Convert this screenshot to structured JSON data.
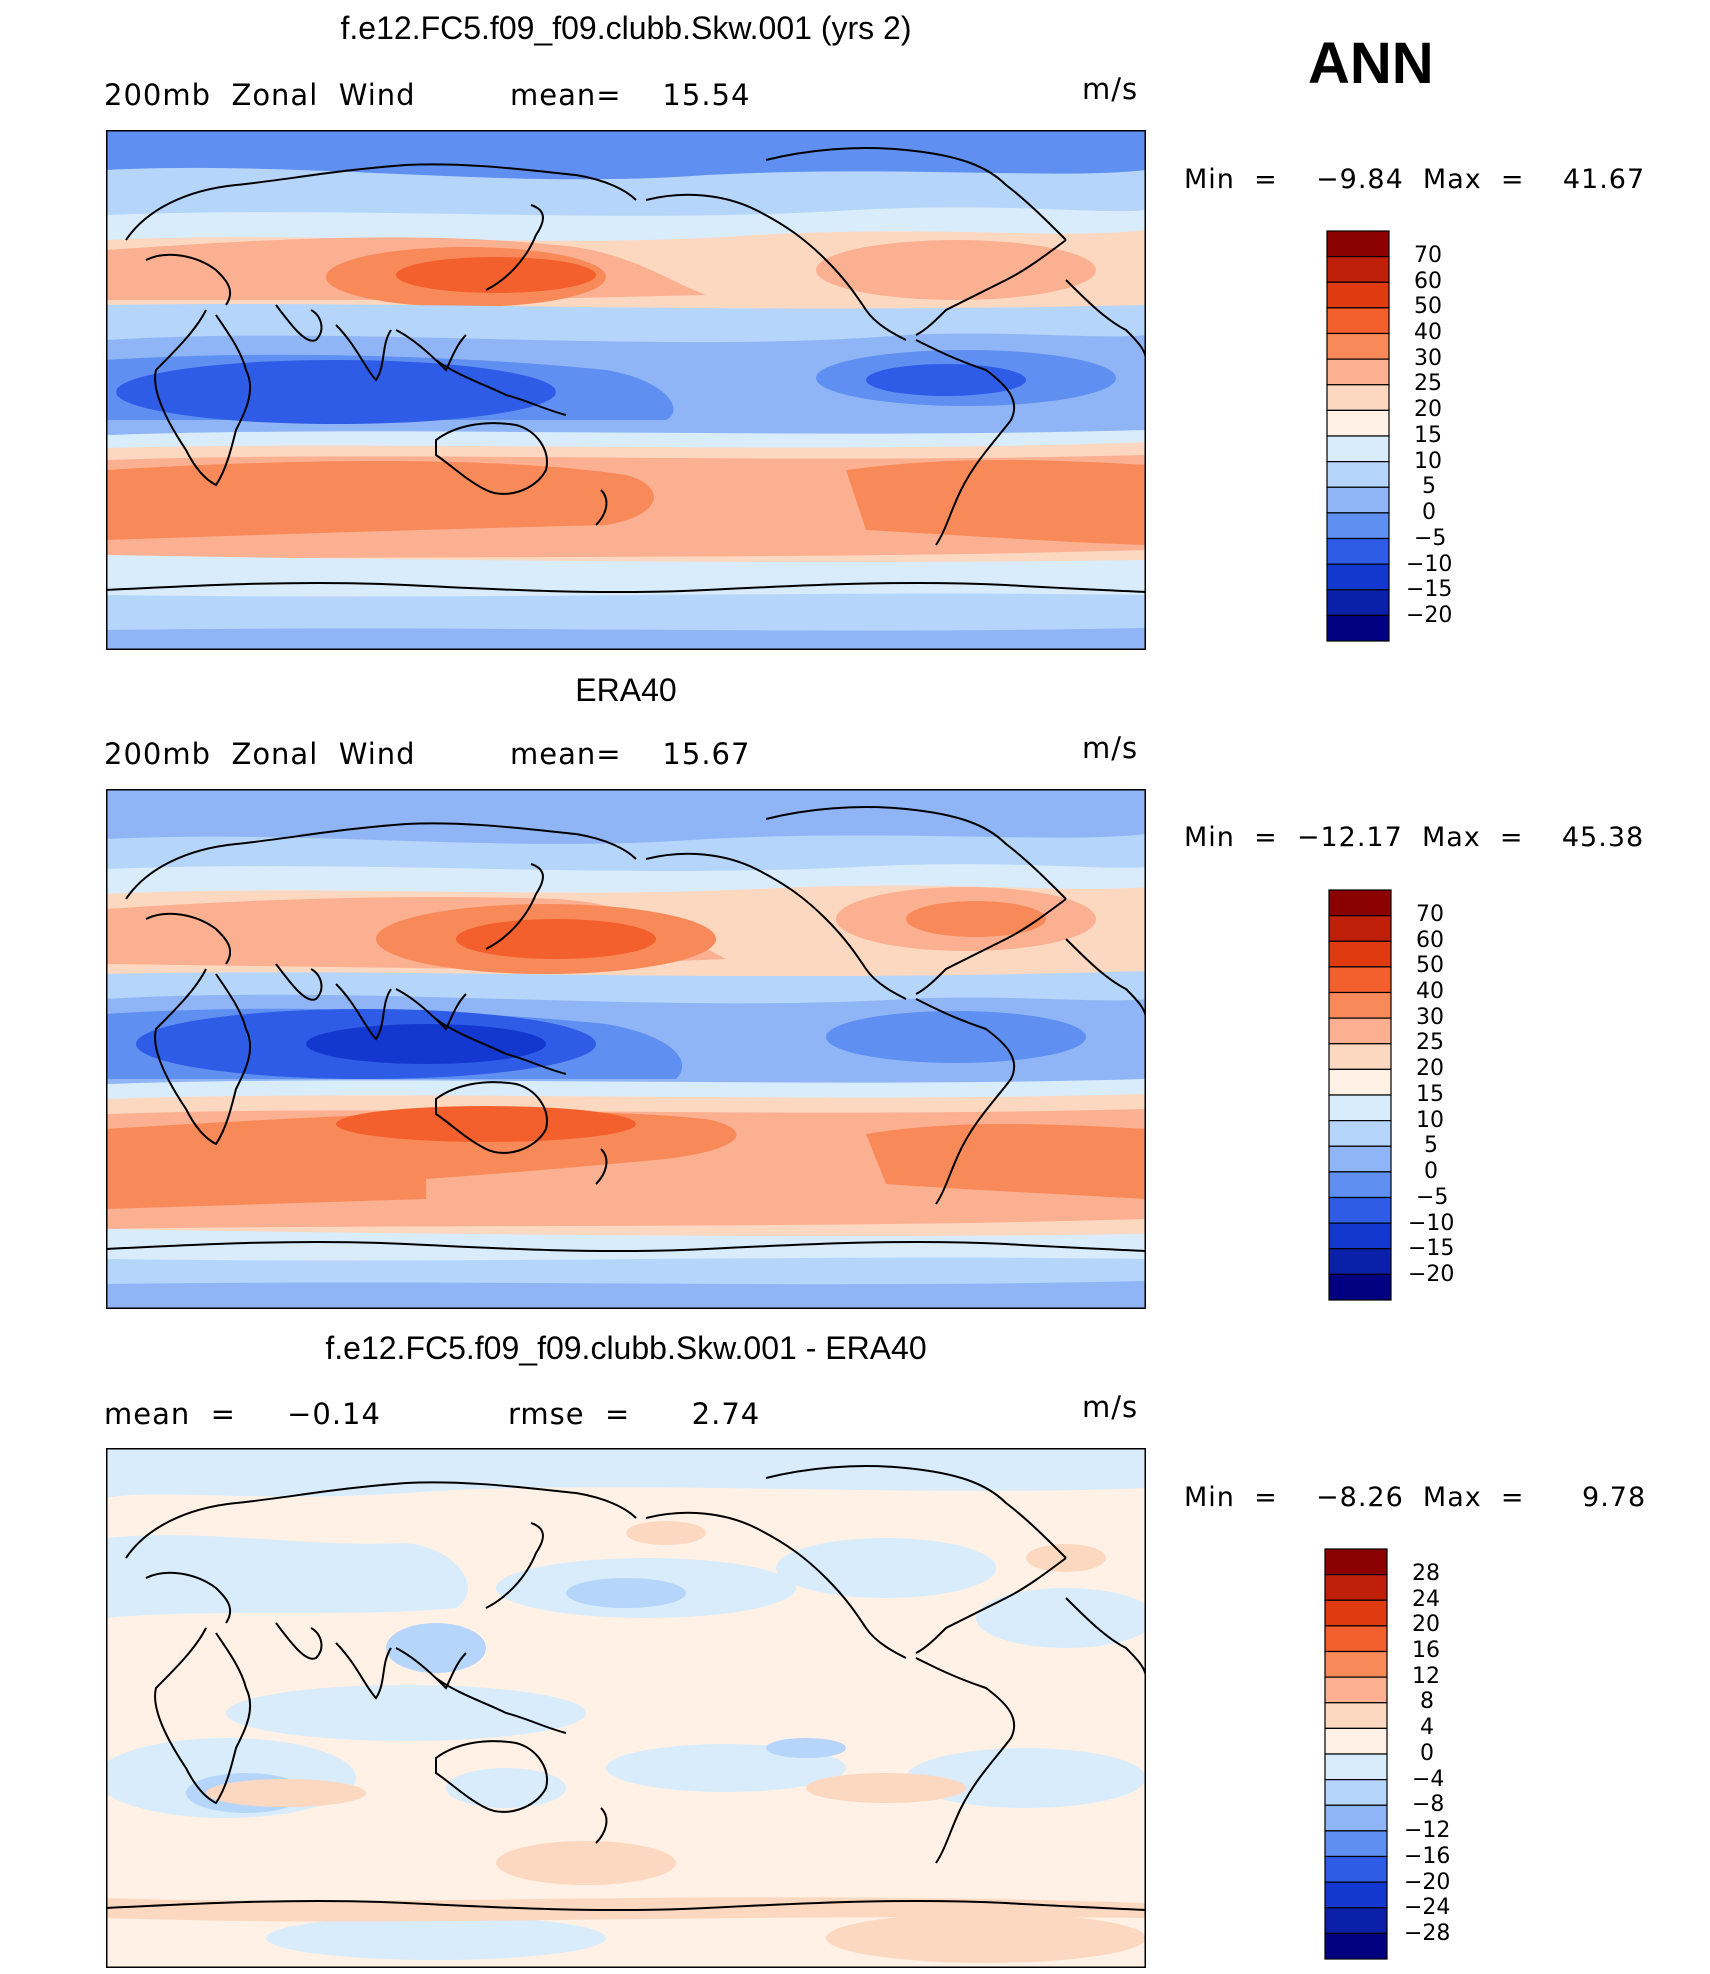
{
  "season": "ANN",
  "panels": [
    {
      "title": "f.e12.FC5.f09_f09.clubb.Skw.001 (yrs 2)",
      "left_label": "200mb  Zonal  Wind",
      "center_label": "mean=    15.54",
      "units": "m/s",
      "minmax": "Min  =    −9.84  Max  =    41.67",
      "levels": [
        "70",
        "60",
        "50",
        "40",
        "30",
        "25",
        "20",
        "15",
        "10",
        "5",
        "0",
        "−5",
        "−10",
        "−15",
        "−20"
      ],
      "colors": [
        "#8b0000",
        "#c0200a",
        "#e03a10",
        "#f4602d",
        "#f88a5a",
        "#fbb092",
        "#fdd8c0",
        "#fff1e6",
        "#d8ecfb",
        "#b6d5fa",
        "#8fb5f6",
        "#5f8ff0",
        "#2f5ce6",
        "#1238d0",
        "#0a20a8",
        "#000080"
      ]
    },
    {
      "title": "ERA40",
      "left_label": "200mb  Zonal  Wind",
      "center_label": "mean=    15.67",
      "units": "m/s",
      "minmax": "Min  =  −12.17  Max  =    45.38",
      "levels": [
        "70",
        "60",
        "50",
        "40",
        "30",
        "25",
        "20",
        "15",
        "10",
        "5",
        "0",
        "−5",
        "−10",
        "−15",
        "−20"
      ],
      "colors": [
        "#8b0000",
        "#c0200a",
        "#e03a10",
        "#f4602d",
        "#f88a5a",
        "#fbb092",
        "#fdd8c0",
        "#fff1e6",
        "#d8ecfb",
        "#b6d5fa",
        "#8fb5f6",
        "#5f8ff0",
        "#2f5ce6",
        "#1238d0",
        "#0a20a8",
        "#000080"
      ]
    },
    {
      "title": "f.e12.FC5.f09_f09.clubb.Skw.001 - ERA40",
      "left_label": "mean  =     −0.14",
      "center_label": "rmse  =      2.74",
      "units": "m/s",
      "minmax": "Min  =    −8.26  Max  =      9.78",
      "levels": [
        "28",
        "24",
        "20",
        "16",
        "12",
        "8",
        "4",
        "0",
        "−4",
        "−8",
        "−12",
        "−16",
        "−20",
        "−24",
        "−28"
      ],
      "colors": [
        "#8b0000",
        "#c0200a",
        "#e03a10",
        "#f4602d",
        "#f88a5a",
        "#fbb092",
        "#fdd8c0",
        "#fff1e6",
        "#d8ecfb",
        "#b6d5fa",
        "#8fb5f6",
        "#5f8ff0",
        "#2f5ce6",
        "#1238d0",
        "#0a20a8",
        "#000080"
      ]
    }
  ],
  "map_palette": {
    "full": [
      "#0a20a8",
      "#1238d0",
      "#2f5ce6",
      "#5f8ff0",
      "#8fb5f6",
      "#b6d5fa",
      "#d8ecfb",
      "#fff1e6",
      "#fdd8c0",
      "#fbb092",
      "#f88a5a",
      "#f4602d",
      "#e03a10"
    ],
    "diff": [
      "#b6d5fa",
      "#d8ecfb",
      "#fff1e6",
      "#fdd8c0"
    ]
  }
}
